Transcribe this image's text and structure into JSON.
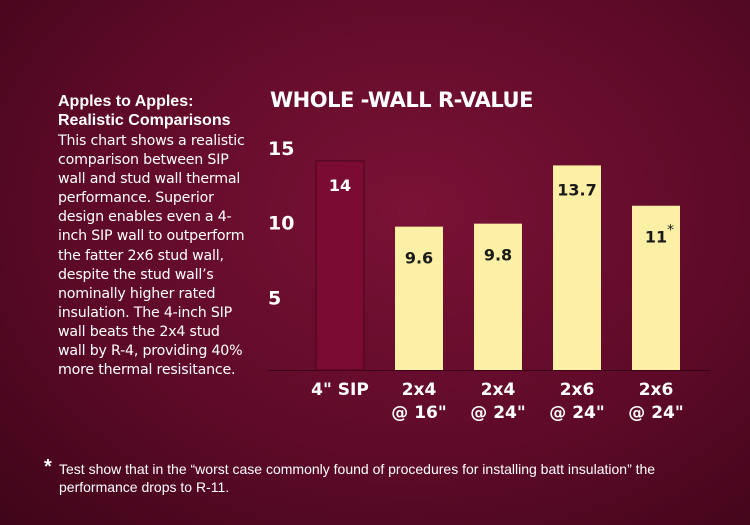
{
  "sidebar": {
    "title_line1": "Apples to Apples:",
    "title_line2": "Realistic Comparisons",
    "body": "This chart shows a realistic comparison between SIP wall and stud wall thermal performance. Superior design enables even a 4-inch SIP wall to outperform the fatter 2x6 stud wall, despite the stud wall’s nominally higher rated insulation. The 4-inch SIP wall beats the 2x4 stud wall by R-4, providing 40% more thermal resisitance."
  },
  "colors": {
    "sip_bar": "#7a0c33",
    "stud_bar": "#fbf0a6",
    "label_on_light": "#1a1a1a",
    "label_on_dark": "#ffffff"
  },
  "chart_data": {
    "type": "bar",
    "title": "WHOLE -WALL R-VALUE",
    "xlabel": "",
    "ylabel": "",
    "ylim": [
      0,
      15
    ],
    "yticks": [
      5,
      10,
      15
    ],
    "grid": false,
    "categories": [
      {
        "line1": "4\" SIP",
        "line2": ""
      },
      {
        "line1": "2x4",
        "line2": "@ 16\""
      },
      {
        "line1": "2x4",
        "line2": "@ 24\""
      },
      {
        "line1": "2x6",
        "line2": "@ 24\""
      },
      {
        "line1": "2x6",
        "line2": "@ 24\""
      }
    ],
    "values": [
      14,
      9.6,
      9.8,
      13.7,
      11
    ],
    "value_labels": [
      "14",
      "9.6",
      "9.8",
      "13.7",
      "11"
    ],
    "annotations": [
      "",
      "",
      "",
      "",
      "*"
    ],
    "highlight_index": 0
  },
  "footnote": {
    "star": "*",
    "text": "Test show that in the “worst  case commonly found of procedures for installing batt insulation” the performance drops to R-11."
  }
}
